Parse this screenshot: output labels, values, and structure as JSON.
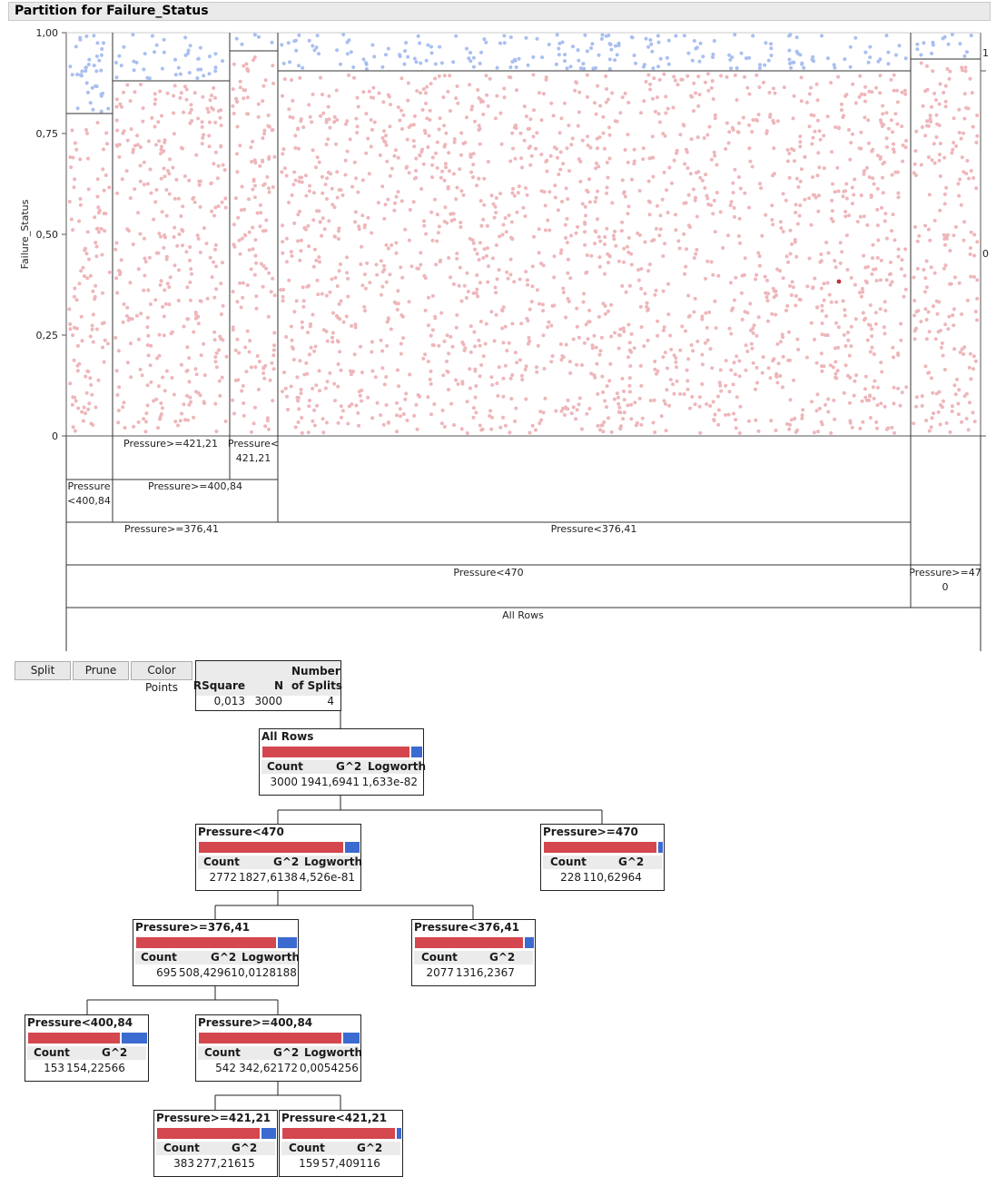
{
  "report": {
    "title": "Partition for Failure_Status"
  },
  "chart_data": {
    "type": "scatter",
    "title": "",
    "ylabel": "Failure_Status",
    "ylim": [
      0,
      1
    ],
    "y_ticks": [
      "1,00",
      "0,75",
      "0,50",
      "0,25",
      "0"
    ],
    "right_labels": [
      "1",
      "0"
    ],
    "series": [
      {
        "name": "1",
        "color": "#a9bff0"
      },
      {
        "name": "0",
        "color": "#eeb6ba"
      }
    ],
    "leaves": [
      {
        "name": "Pressure<400,84",
        "n": 153,
        "rate_0": 0.8
      },
      {
        "name": "Pressure>=421,21",
        "n": 383,
        "rate_0": 0.88
      },
      {
        "name": "Pressure<421,21",
        "n": 159,
        "rate_0": 0.95
      },
      {
        "name": "Pressure<376,41",
        "n": 2077,
        "rate_0": 0.905
      },
      {
        "name": "Pressure>=470",
        "n": 228,
        "rate_0": 0.935
      }
    ]
  },
  "split_labels": {
    "ge421": "Pressure>=421,21",
    "lt421_a": "Pressure<",
    "lt421_b": "421,21",
    "lt400_a": "Pressure",
    "lt400_b": "<400,84",
    "ge400": "Pressure>=400,84",
    "ge376": "Pressure>=376,41",
    "lt376": "Pressure<376,41",
    "lt470": "Pressure<470",
    "ge470_a": "Pressure>=47",
    "ge470_b": "0",
    "all": "All Rows"
  },
  "buttons": {
    "split": "Split",
    "prune": "Prune",
    "color_points": "Color Points"
  },
  "summary": {
    "rsquare_label": "RSquare",
    "n_label": "N",
    "splits_label_1": "Number",
    "splits_label_2": "of Splits",
    "rsquare": "0,013",
    "n": "3000",
    "splits": "4"
  },
  "headers": {
    "count": "Count",
    "g2": "G^2",
    "logworth": "Logworth"
  },
  "nodes": {
    "all": {
      "title": "All Rows",
      "count": "3000",
      "g2": "1941,6941",
      "logworth": "1,633e-82",
      "red": 0.93
    },
    "lt470": {
      "title": "Pressure<470",
      "count": "2772",
      "g2": "1827,6138",
      "logworth": "4,526e-81",
      "red": 0.91
    },
    "ge470": {
      "title": "Pressure>=470",
      "count": "228",
      "g2": "110,62964",
      "red": 0.96
    },
    "ge376": {
      "title": "Pressure>=376,41",
      "count": "695",
      "g2": "508,42961",
      "logworth": "0,0128188",
      "red": 0.88
    },
    "lt376": {
      "title": "Pressure<376,41",
      "count": "2077",
      "g2": "1316,2367",
      "red": 0.92
    },
    "lt400": {
      "title": "Pressure<400,84",
      "count": "153",
      "g2": "154,22566",
      "red": 0.79
    },
    "ge400": {
      "title": "Pressure>=400,84",
      "count": "542",
      "g2": "342,62172",
      "logworth": "0,0054256",
      "red": 0.9
    },
    "ge421": {
      "title": "Pressure>=421,21",
      "count": "383",
      "g2": "277,21615",
      "red": 0.88
    },
    "lt421": {
      "title": "Pressure<421,21",
      "count": "159",
      "g2": "57,409116",
      "red": 0.96
    }
  }
}
